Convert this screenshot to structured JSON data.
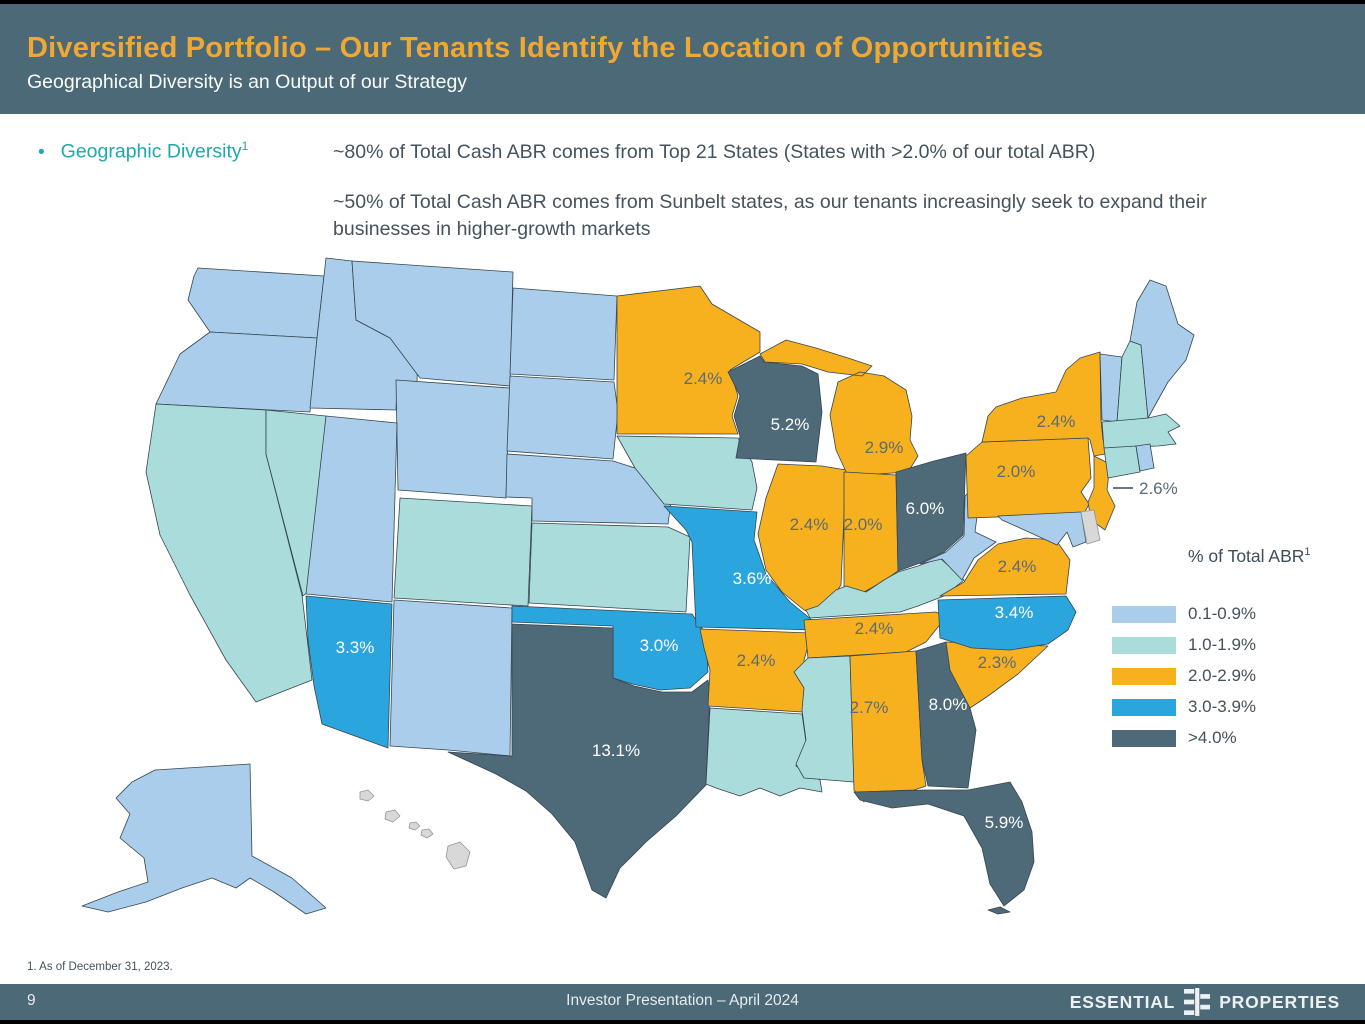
{
  "header": {
    "title": "Diversified Portfolio – Our Tenants Identify the Location of Opportunities",
    "subtitle": "Geographical Diversity is an Output of our Strategy"
  },
  "bullets": {
    "marker": "•",
    "label": "Geographic Diversity",
    "label_sup": "1",
    "point1": "~80% of Total Cash ABR comes from Top 21 States (States with >2.0% of our total ABR)",
    "point2": "~50% of Total Cash ABR comes from Sunbelt states, as our tenants increasingly seek to expand their businesses in higher-growth markets"
  },
  "legend": {
    "title": "% of Total ABR",
    "title_sup": "1",
    "items": [
      {
        "range": "0.1-0.9%",
        "color": "#A9CDEB"
      },
      {
        "range": "1.0-1.9%",
        "color": "#A9DCDB"
      },
      {
        "range": "2.0-2.9%",
        "color": "#F7B01E"
      },
      {
        "range": "3.0-3.9%",
        "color": "#2BA5DE"
      },
      {
        "range": ">4.0%",
        "color": "#4E6978"
      }
    ]
  },
  "map": {
    "categories": {
      "cat1": "#A9CDEB",
      "cat2": "#A9DCDB",
      "cat3": "#F7B01E",
      "cat4": "#2BA5DE",
      "cat5": "#4E6978",
      "none": "#D8D8D8"
    },
    "label_colors": {
      "cat3": "#5D6B74",
      "cat4": "#FFFFFF",
      "cat5": "#FFFFFF"
    },
    "states": [
      {
        "id": "WA",
        "name": "Washington",
        "category": "cat1",
        "value": ""
      },
      {
        "id": "OR",
        "name": "Oregon",
        "category": "cat1",
        "value": ""
      },
      {
        "id": "CA",
        "name": "California",
        "category": "cat2",
        "value": ""
      },
      {
        "id": "NV",
        "name": "Nevada",
        "category": "cat2",
        "value": ""
      },
      {
        "id": "ID",
        "name": "Idaho",
        "category": "cat1",
        "value": ""
      },
      {
        "id": "MT",
        "name": "Montana",
        "category": "cat1",
        "value": ""
      },
      {
        "id": "WY",
        "name": "Wyoming",
        "category": "cat1",
        "value": ""
      },
      {
        "id": "UT",
        "name": "Utah",
        "category": "cat1",
        "value": ""
      },
      {
        "id": "CO",
        "name": "Colorado",
        "category": "cat2",
        "value": ""
      },
      {
        "id": "AZ",
        "name": "Arizona",
        "category": "cat4",
        "value": "3.3%"
      },
      {
        "id": "NM",
        "name": "New Mexico",
        "category": "cat1",
        "value": ""
      },
      {
        "id": "ND",
        "name": "North Dakota",
        "category": "cat1",
        "value": ""
      },
      {
        "id": "SD",
        "name": "South Dakota",
        "category": "cat1",
        "value": ""
      },
      {
        "id": "NE",
        "name": "Nebraska",
        "category": "cat1",
        "value": ""
      },
      {
        "id": "KS",
        "name": "Kansas",
        "category": "cat2",
        "value": ""
      },
      {
        "id": "OK",
        "name": "Oklahoma",
        "category": "cat4",
        "value": "3.0%"
      },
      {
        "id": "TX",
        "name": "Texas",
        "category": "cat5",
        "value": "13.1%"
      },
      {
        "id": "MN",
        "name": "Minnesota",
        "category": "cat3",
        "value": "2.4%"
      },
      {
        "id": "IA",
        "name": "Iowa",
        "category": "cat2",
        "value": ""
      },
      {
        "id": "MO",
        "name": "Missouri",
        "category": "cat4",
        "value": "3.6%"
      },
      {
        "id": "AR",
        "name": "Arkansas",
        "category": "cat3",
        "value": "2.4%"
      },
      {
        "id": "LA",
        "name": "Louisiana",
        "category": "cat2",
        "value": ""
      },
      {
        "id": "WI",
        "name": "Wisconsin",
        "category": "cat5",
        "value": "5.2%"
      },
      {
        "id": "IL",
        "name": "Illinois",
        "category": "cat3",
        "value": "2.4%"
      },
      {
        "id": "MI",
        "name": "Michigan",
        "category": "cat3",
        "value": "2.9%"
      },
      {
        "id": "IN",
        "name": "Indiana",
        "category": "cat3",
        "value": "2.0%"
      },
      {
        "id": "OH",
        "name": "Ohio",
        "category": "cat5",
        "value": "6.0%"
      },
      {
        "id": "KY",
        "name": "Kentucky",
        "category": "cat2",
        "value": ""
      },
      {
        "id": "TN",
        "name": "Tennessee",
        "category": "cat3",
        "value": "2.4%"
      },
      {
        "id": "MS",
        "name": "Mississippi",
        "category": "cat2",
        "value": ""
      },
      {
        "id": "AL",
        "name": "Alabama",
        "category": "cat3",
        "value": "2.7%"
      },
      {
        "id": "GA",
        "name": "Georgia",
        "category": "cat5",
        "value": "8.0%"
      },
      {
        "id": "FL",
        "name": "Florida",
        "category": "cat5",
        "value": "5.9%"
      },
      {
        "id": "SC",
        "name": "South Carolina",
        "category": "cat3",
        "value": "2.3%"
      },
      {
        "id": "NC",
        "name": "North Carolina",
        "category": "cat4",
        "value": "3.4%"
      },
      {
        "id": "VA",
        "name": "Virginia",
        "category": "cat3",
        "value": "2.4%"
      },
      {
        "id": "WV",
        "name": "West Virginia",
        "category": "cat1",
        "value": ""
      },
      {
        "id": "PA",
        "name": "Pennsylvania",
        "category": "cat3",
        "value": "2.0%"
      },
      {
        "id": "NY",
        "name": "New York",
        "category": "cat3",
        "value": "2.4%"
      },
      {
        "id": "NJ",
        "name": "New Jersey",
        "category": "cat3",
        "value": "2.6%",
        "callout": true
      },
      {
        "id": "MD",
        "name": "Maryland",
        "category": "cat1",
        "value": ""
      },
      {
        "id": "DE",
        "name": "Delaware",
        "category": "none",
        "value": ""
      },
      {
        "id": "VT",
        "name": "Vermont",
        "category": "cat1",
        "value": ""
      },
      {
        "id": "NH",
        "name": "New Hampshire",
        "category": "cat2",
        "value": ""
      },
      {
        "id": "ME",
        "name": "Maine",
        "category": "cat1",
        "value": ""
      },
      {
        "id": "MA",
        "name": "Massachusetts",
        "category": "cat2",
        "value": ""
      },
      {
        "id": "CT",
        "name": "Connecticut",
        "category": "cat2",
        "value": ""
      },
      {
        "id": "RI",
        "name": "Rhode Island",
        "category": "cat1",
        "value": ""
      },
      {
        "id": "AK",
        "name": "Alaska",
        "category": "cat1",
        "value": ""
      },
      {
        "id": "HI",
        "name": "Hawaii",
        "category": "none",
        "value": ""
      }
    ]
  },
  "footnote": "1. As of December 31, 2023.",
  "footer": {
    "page": "9",
    "center": "Investor Presentation – April 2024",
    "logo_left": "ESSENTIAL",
    "logo_right": "PROPERTIES"
  }
}
